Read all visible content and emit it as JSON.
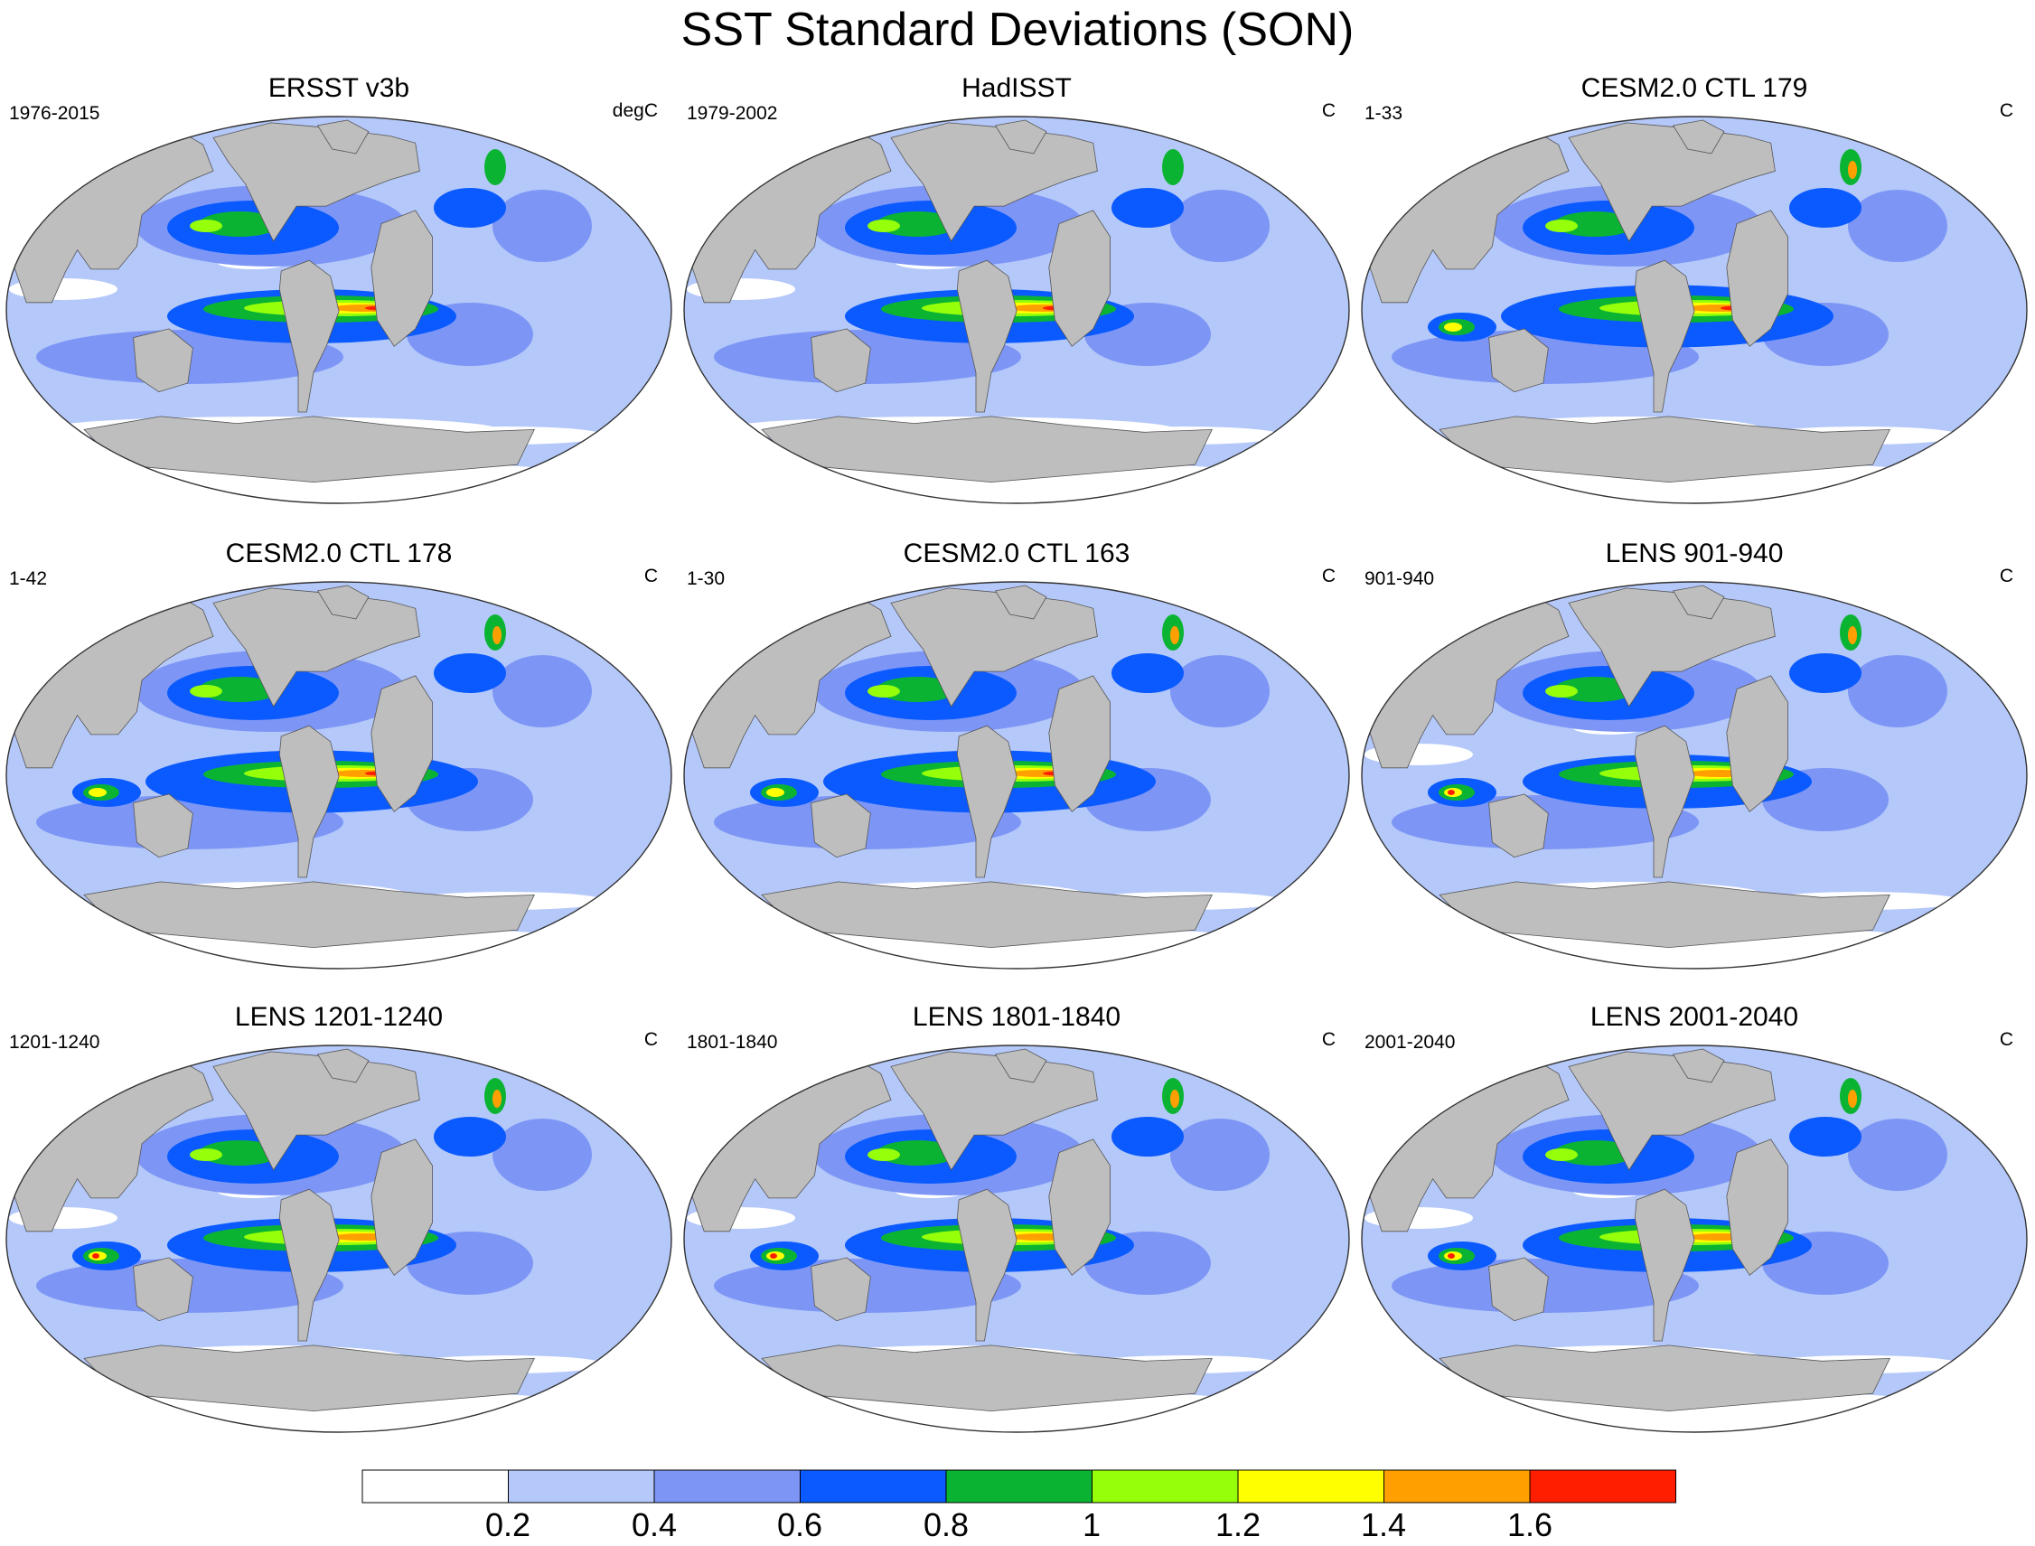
{
  "title": "SST Standard Deviations (SON)",
  "panels": [
    {
      "title": "ERSST v3b",
      "period": "1976-2015",
      "unit": "degC",
      "variant": "obs1"
    },
    {
      "title": "HadISST",
      "period": "1979-2002",
      "unit": "C",
      "variant": "obs2"
    },
    {
      "title": "CESM2.0 CTL 179",
      "period": "1-33",
      "unit": "C",
      "variant": "model"
    },
    {
      "title": "CESM2.0 CTL 178",
      "period": "1-42",
      "unit": "C",
      "variant": "model"
    },
    {
      "title": "CESM2.0 CTL 163",
      "period": "1-30",
      "unit": "C",
      "variant": "model"
    },
    {
      "title": "LENS 901-940",
      "period": "901-940",
      "unit": "C",
      "variant": "lens"
    },
    {
      "title": "LENS 1201-1240",
      "period": "1201-1240",
      "unit": "C",
      "variant": "lens"
    },
    {
      "title": "LENS 1801-1840",
      "period": "1801-1840",
      "unit": "C",
      "variant": "lens"
    },
    {
      "title": "LENS 2001-2040",
      "period": "2001-2040",
      "unit": "C",
      "variant": "lens"
    }
  ],
  "colorbar": {
    "labels": [
      "0.2",
      "0.4",
      "0.6",
      "0.8",
      "1",
      "1.2",
      "1.4",
      "1.6"
    ],
    "colors": [
      "#ffffff",
      "#b4c8fa",
      "#7d96f5",
      "#0a5aff",
      "#0ab432",
      "#96ff0a",
      "#ffff00",
      "#ffa000",
      "#ff1e00"
    ]
  },
  "land_color": "#bebebe"
}
